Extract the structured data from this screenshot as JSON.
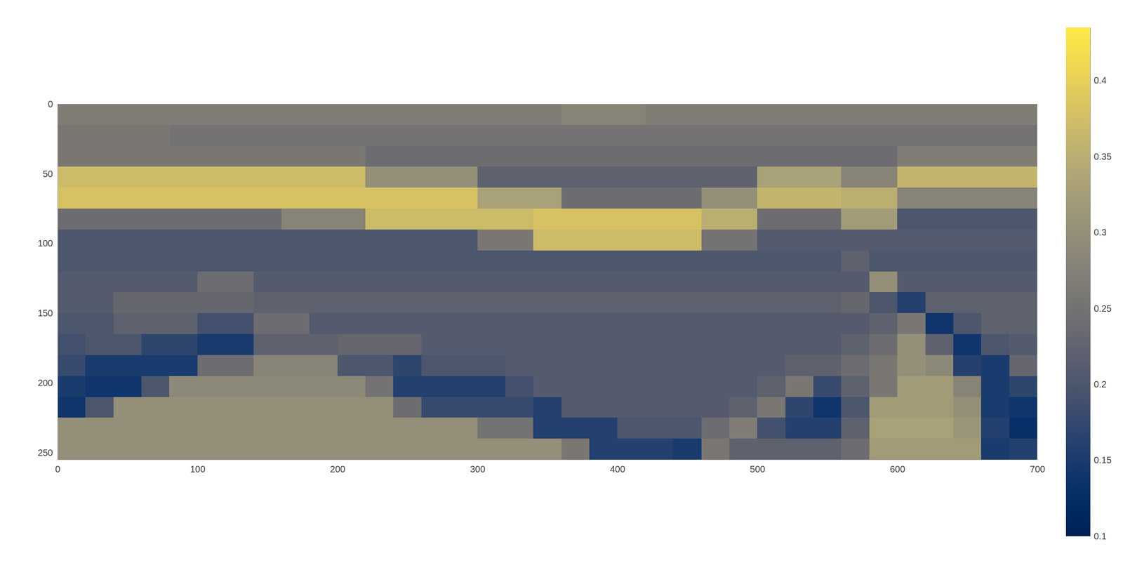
{
  "chart_data": {
    "type": "heatmap",
    "x": [
      10,
      30,
      50,
      70,
      90,
      110,
      130,
      150,
      170,
      190,
      210,
      230,
      250,
      270,
      290,
      310,
      330,
      350,
      370,
      390,
      410,
      430,
      450,
      470,
      490,
      510,
      530,
      550,
      570,
      590,
      610,
      630,
      650,
      670,
      690
    ],
    "y": [
      7.5,
      22.5,
      37.5,
      52.5,
      67.5,
      82.5,
      97.5,
      112.5,
      127.5,
      142.5,
      157.5,
      172.5,
      187.5,
      202.5,
      217.5,
      232.5,
      247.5
    ],
    "z": [
      [
        0.27,
        0.27,
        0.27,
        0.27,
        0.27,
        0.27,
        0.27,
        0.27,
        0.27,
        0.27,
        0.27,
        0.27,
        0.27,
        0.27,
        0.27,
        0.27,
        0.27,
        0.27,
        0.28,
        0.28,
        0.28,
        0.27,
        0.27,
        0.27,
        0.27,
        0.27,
        0.27,
        0.27,
        0.27,
        0.27,
        0.27,
        0.27,
        0.27,
        0.27,
        0.27
      ],
      [
        0.26,
        0.26,
        0.26,
        0.26,
        0.25,
        0.25,
        0.25,
        0.25,
        0.25,
        0.25,
        0.25,
        0.25,
        0.25,
        0.25,
        0.25,
        0.25,
        0.25,
        0.25,
        0.25,
        0.25,
        0.25,
        0.25,
        0.25,
        0.25,
        0.25,
        0.25,
        0.25,
        0.25,
        0.25,
        0.25,
        0.25,
        0.25,
        0.25,
        0.25,
        0.25
      ],
      [
        0.26,
        0.26,
        0.26,
        0.26,
        0.26,
        0.26,
        0.26,
        0.26,
        0.26,
        0.26,
        0.26,
        0.24,
        0.24,
        0.24,
        0.24,
        0.24,
        0.24,
        0.24,
        0.24,
        0.24,
        0.24,
        0.24,
        0.24,
        0.24,
        0.24,
        0.24,
        0.24,
        0.24,
        0.24,
        0.24,
        0.27,
        0.27,
        0.27,
        0.27,
        0.27
      ],
      [
        0.37,
        0.37,
        0.37,
        0.37,
        0.37,
        0.37,
        0.37,
        0.37,
        0.37,
        0.37,
        0.37,
        0.3,
        0.3,
        0.3,
        0.3,
        0.22,
        0.22,
        0.22,
        0.22,
        0.22,
        0.22,
        0.22,
        0.22,
        0.22,
        0.22,
        0.33,
        0.33,
        0.33,
        0.28,
        0.28,
        0.36,
        0.36,
        0.36,
        0.36,
        0.36
      ],
      [
        0.38,
        0.38,
        0.38,
        0.38,
        0.38,
        0.38,
        0.38,
        0.38,
        0.38,
        0.38,
        0.38,
        0.38,
        0.38,
        0.38,
        0.38,
        0.33,
        0.33,
        0.33,
        0.24,
        0.24,
        0.24,
        0.24,
        0.24,
        0.3,
        0.3,
        0.36,
        0.36,
        0.36,
        0.35,
        0.35,
        0.28,
        0.28,
        0.28,
        0.28,
        0.28
      ],
      [
        0.24,
        0.24,
        0.24,
        0.24,
        0.24,
        0.24,
        0.24,
        0.24,
        0.28,
        0.28,
        0.28,
        0.37,
        0.37,
        0.37,
        0.37,
        0.37,
        0.37,
        0.38,
        0.38,
        0.38,
        0.38,
        0.38,
        0.38,
        0.35,
        0.35,
        0.24,
        0.24,
        0.24,
        0.32,
        0.32,
        0.2,
        0.2,
        0.2,
        0.2,
        0.2
      ],
      [
        0.2,
        0.2,
        0.2,
        0.2,
        0.2,
        0.2,
        0.2,
        0.2,
        0.2,
        0.2,
        0.2,
        0.2,
        0.2,
        0.2,
        0.2,
        0.26,
        0.26,
        0.37,
        0.37,
        0.37,
        0.37,
        0.37,
        0.37,
        0.25,
        0.25,
        0.21,
        0.21,
        0.21,
        0.21,
        0.21,
        0.21,
        0.21,
        0.21,
        0.21,
        0.21
      ],
      [
        0.2,
        0.2,
        0.2,
        0.2,
        0.2,
        0.2,
        0.2,
        0.2,
        0.2,
        0.2,
        0.2,
        0.2,
        0.2,
        0.2,
        0.2,
        0.2,
        0.2,
        0.2,
        0.2,
        0.2,
        0.2,
        0.2,
        0.2,
        0.2,
        0.2,
        0.2,
        0.2,
        0.2,
        0.22,
        0.2,
        0.2,
        0.2,
        0.2,
        0.2,
        0.2
      ],
      [
        0.21,
        0.21,
        0.21,
        0.21,
        0.21,
        0.24,
        0.24,
        0.21,
        0.21,
        0.21,
        0.21,
        0.21,
        0.21,
        0.21,
        0.21,
        0.21,
        0.21,
        0.21,
        0.21,
        0.21,
        0.21,
        0.21,
        0.21,
        0.21,
        0.21,
        0.21,
        0.21,
        0.21,
        0.21,
        0.3,
        0.21,
        0.21,
        0.21,
        0.21,
        0.21
      ],
      [
        0.21,
        0.21,
        0.23,
        0.23,
        0.23,
        0.23,
        0.23,
        0.22,
        0.22,
        0.22,
        0.22,
        0.22,
        0.22,
        0.22,
        0.22,
        0.22,
        0.22,
        0.22,
        0.22,
        0.22,
        0.22,
        0.22,
        0.22,
        0.22,
        0.22,
        0.22,
        0.22,
        0.22,
        0.23,
        0.2,
        0.16,
        0.22,
        0.22,
        0.22,
        0.22
      ],
      [
        0.2,
        0.2,
        0.22,
        0.22,
        0.22,
        0.19,
        0.19,
        0.24,
        0.24,
        0.21,
        0.21,
        0.21,
        0.21,
        0.21,
        0.21,
        0.21,
        0.21,
        0.21,
        0.21,
        0.21,
        0.21,
        0.21,
        0.21,
        0.21,
        0.21,
        0.21,
        0.21,
        0.21,
        0.21,
        0.22,
        0.26,
        0.14,
        0.2,
        0.22,
        0.22
      ],
      [
        0.19,
        0.2,
        0.2,
        0.17,
        0.17,
        0.15,
        0.15,
        0.22,
        0.22,
        0.22,
        0.23,
        0.23,
        0.23,
        0.21,
        0.21,
        0.21,
        0.21,
        0.21,
        0.21,
        0.21,
        0.21,
        0.21,
        0.21,
        0.21,
        0.21,
        0.21,
        0.21,
        0.21,
        0.22,
        0.24,
        0.3,
        0.22,
        0.14,
        0.2,
        0.21
      ],
      [
        0.18,
        0.15,
        0.15,
        0.15,
        0.15,
        0.24,
        0.24,
        0.28,
        0.28,
        0.28,
        0.2,
        0.2,
        0.17,
        0.2,
        0.2,
        0.2,
        0.21,
        0.21,
        0.21,
        0.21,
        0.21,
        0.21,
        0.21,
        0.21,
        0.21,
        0.21,
        0.22,
        0.22,
        0.24,
        0.26,
        0.3,
        0.29,
        0.16,
        0.15,
        0.23
      ],
      [
        0.15,
        0.14,
        0.14,
        0.2,
        0.29,
        0.29,
        0.29,
        0.29,
        0.29,
        0.29,
        0.29,
        0.25,
        0.16,
        0.16,
        0.16,
        0.16,
        0.19,
        0.21,
        0.21,
        0.21,
        0.21,
        0.21,
        0.21,
        0.21,
        0.21,
        0.22,
        0.26,
        0.18,
        0.22,
        0.26,
        0.32,
        0.32,
        0.28,
        0.15,
        0.17
      ],
      [
        0.14,
        0.2,
        0.3,
        0.3,
        0.3,
        0.3,
        0.3,
        0.3,
        0.3,
        0.3,
        0.3,
        0.3,
        0.24,
        0.18,
        0.18,
        0.18,
        0.18,
        0.16,
        0.21,
        0.21,
        0.21,
        0.21,
        0.21,
        0.21,
        0.22,
        0.26,
        0.17,
        0.14,
        0.2,
        0.32,
        0.32,
        0.32,
        0.3,
        0.15,
        0.14
      ],
      [
        0.3,
        0.3,
        0.3,
        0.3,
        0.3,
        0.3,
        0.3,
        0.3,
        0.3,
        0.3,
        0.3,
        0.3,
        0.3,
        0.3,
        0.3,
        0.25,
        0.25,
        0.16,
        0.16,
        0.16,
        0.2,
        0.2,
        0.2,
        0.24,
        0.27,
        0.19,
        0.16,
        0.16,
        0.22,
        0.33,
        0.33,
        0.33,
        0.31,
        0.16,
        0.13
      ],
      [
        0.3,
        0.3,
        0.3,
        0.3,
        0.3,
        0.3,
        0.3,
        0.3,
        0.3,
        0.3,
        0.3,
        0.3,
        0.3,
        0.3,
        0.3,
        0.3,
        0.3,
        0.3,
        0.26,
        0.16,
        0.16,
        0.16,
        0.15,
        0.26,
        0.22,
        0.22,
        0.22,
        0.22,
        0.24,
        0.32,
        0.32,
        0.32,
        0.32,
        0.15,
        0.16
      ]
    ],
    "xlim": [
      0,
      700
    ],
    "ylim": [
      0,
      255
    ],
    "xticks": [
      0,
      100,
      200,
      300,
      400,
      500,
      600,
      700
    ],
    "yticks": [
      0,
      50,
      100,
      150,
      200,
      250
    ],
    "zlim": [
      0.1,
      0.435
    ],
    "zticks": [
      0.1,
      0.15,
      0.2,
      0.25,
      0.3,
      0.35,
      0.4
    ]
  }
}
